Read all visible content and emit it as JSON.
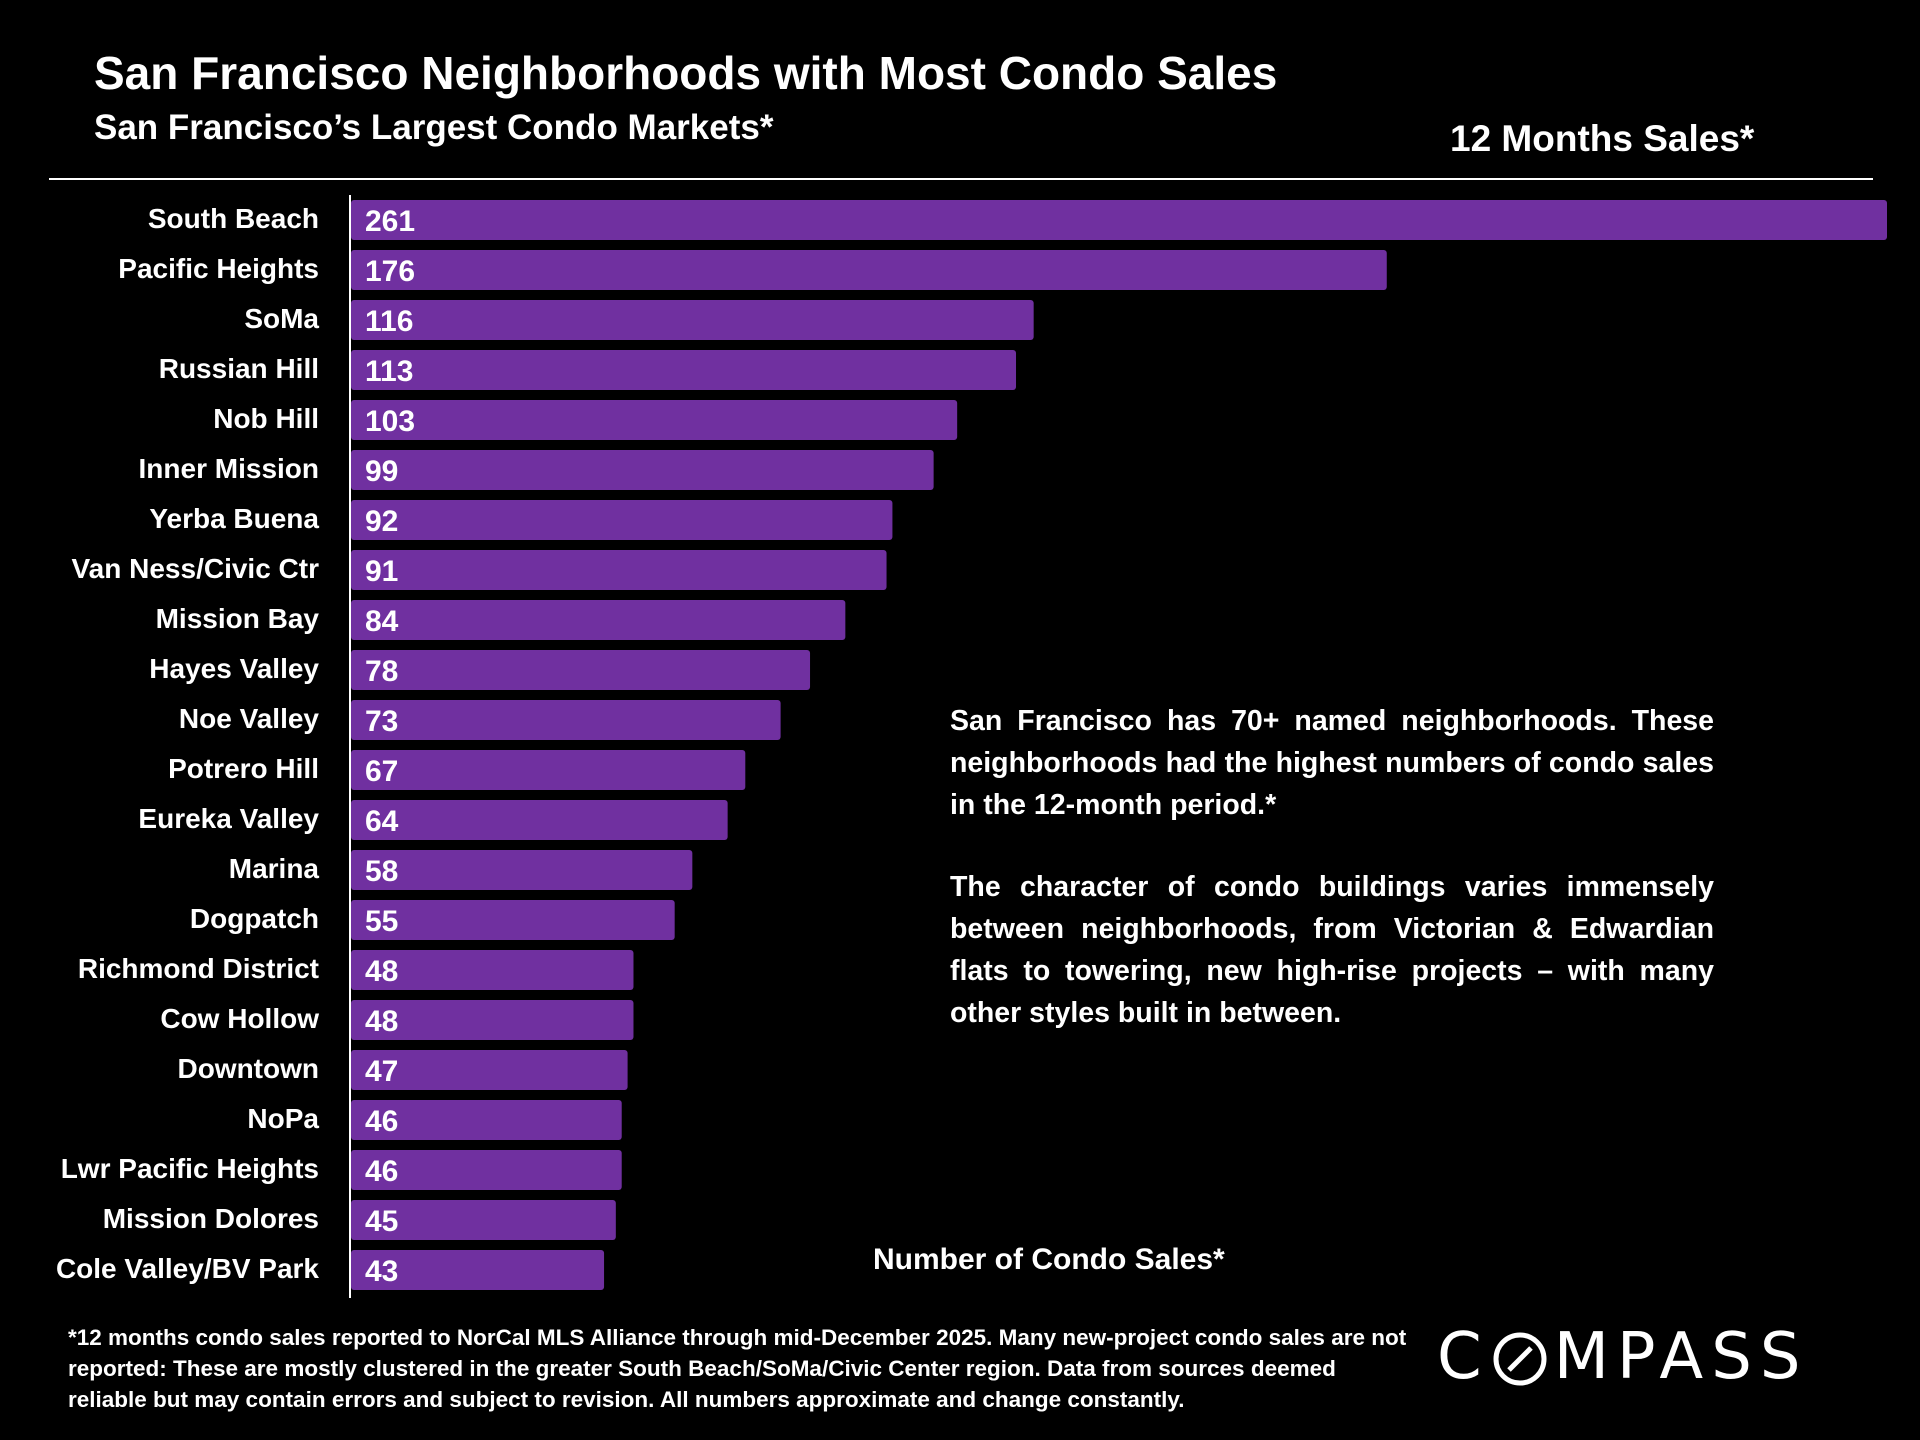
{
  "header": {
    "title": "San Francisco Neighborhoods with Most Condo Sales",
    "subtitle": "San Francisco’s Largest Condo Markets*",
    "period_label": "12 Months Sales*"
  },
  "annotation": {
    "paragraph1": "San Francisco has 70+ named neighborhoods. These neighborhoods had the highest numbers of condo sales in the 12-month period.*",
    "paragraph2": "The character of condo buildings varies immensely between neighborhoods, from Victorian & Edwardian flats to towering, new high-rise projects – with many other styles built in between."
  },
  "footnote": "*12 months condo sales reported to NorCal MLS Alliance through mid-December 2025. Many new-project condo sales are not reported:  These are mostly clustered in the greater South Beach/SoMa/Civic Center region. Data from sources deemed reliable but may contain errors and subject to revision. All numbers approximate and change constantly.",
  "logo": {
    "text_before": "C",
    "text_after": "MPASS",
    "full": "COMPASS"
  },
  "colors": {
    "bar": "#7030a0",
    "background": "#000000",
    "text": "#ffffff"
  },
  "chart_data": {
    "type": "bar",
    "orientation": "horizontal",
    "title": "San Francisco Neighborhoods with Most Condo Sales",
    "subtitle": "San Francisco’s Largest Condo Markets*",
    "xlabel": "Number of Condo Sales*",
    "ylabel": "",
    "xlim": [
      0,
      261
    ],
    "grid": false,
    "legend": "none",
    "data_labels": true,
    "categories": [
      "South Beach",
      "Pacific Heights",
      "SoMa",
      "Russian Hill",
      "Nob Hill",
      "Inner Mission",
      "Yerba Buena",
      "Van Ness/Civic Ctr",
      "Mission Bay",
      "Hayes Valley",
      "Noe Valley",
      "Potrero Hill",
      "Eureka Valley",
      "Marina",
      "Dogpatch",
      "Richmond District",
      "Cow Hollow",
      "Downtown",
      "NoPa",
      "Lwr Pacific Heights",
      "Mission Dolores",
      "Cole Valley/BV Park"
    ],
    "values": [
      261,
      176,
      116,
      113,
      103,
      99,
      92,
      91,
      84,
      78,
      73,
      67,
      64,
      58,
      55,
      48,
      48,
      47,
      46,
      46,
      45,
      43
    ]
  }
}
